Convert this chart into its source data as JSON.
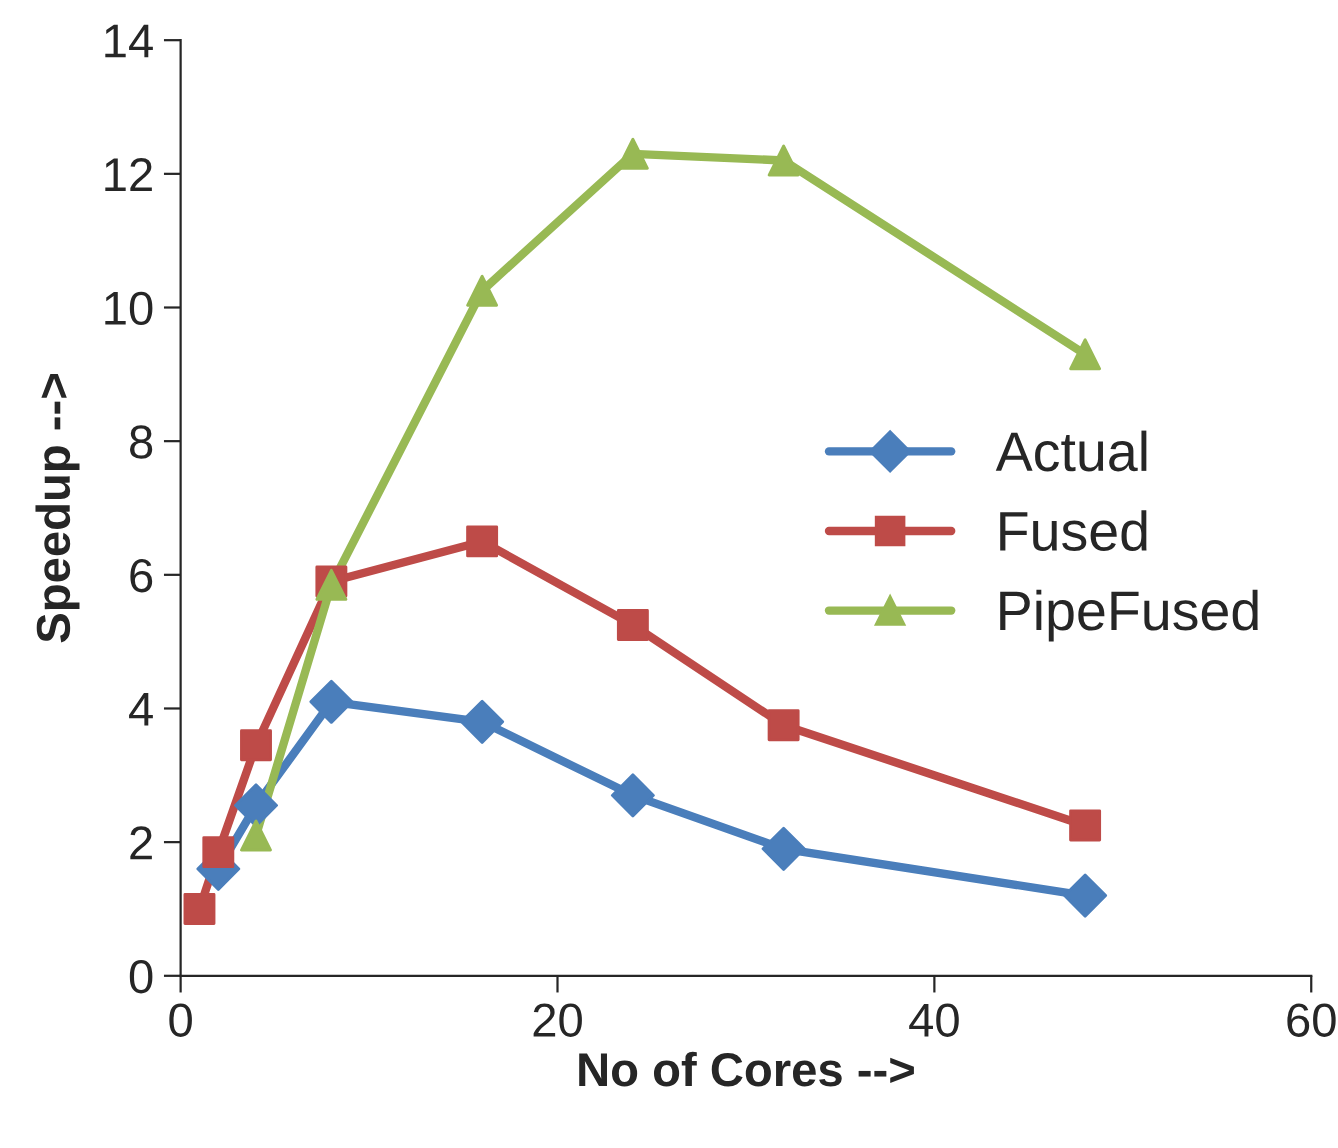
{
  "chart_data": {
    "type": "line",
    "xlabel": "No of Cores -->",
    "ylabel": "Speedup -->",
    "xlim": [
      0,
      60
    ],
    "xticks": [
      0,
      20,
      40,
      60
    ],
    "ylim": [
      0,
      14
    ],
    "yticks": [
      0,
      2,
      4,
      6,
      8,
      10,
      12,
      14
    ],
    "grid": false,
    "legend": "right",
    "series": [
      {
        "name": "Actual",
        "color": "#4a7ebb",
        "marker": "diamond",
        "x": [
          2,
          4,
          8,
          16,
          24,
          32,
          48
        ],
        "values": [
          1.6,
          2.55,
          4.1,
          3.8,
          2.7,
          1.9,
          1.2
        ]
      },
      {
        "name": "Fused",
        "color": "#be4b48",
        "marker": "square",
        "x": [
          1,
          2,
          4,
          8,
          16,
          24,
          32,
          48
        ],
        "values": [
          1.0,
          1.85,
          3.45,
          5.9,
          6.5,
          5.25,
          3.75,
          2.25
        ]
      },
      {
        "name": "PipeFused",
        "color": "#98b954",
        "marker": "triangle",
        "x": [
          4,
          8,
          16,
          24,
          32,
          48
        ],
        "values": [
          2.1,
          5.85,
          10.25,
          12.3,
          12.2,
          9.3
        ]
      }
    ]
  }
}
